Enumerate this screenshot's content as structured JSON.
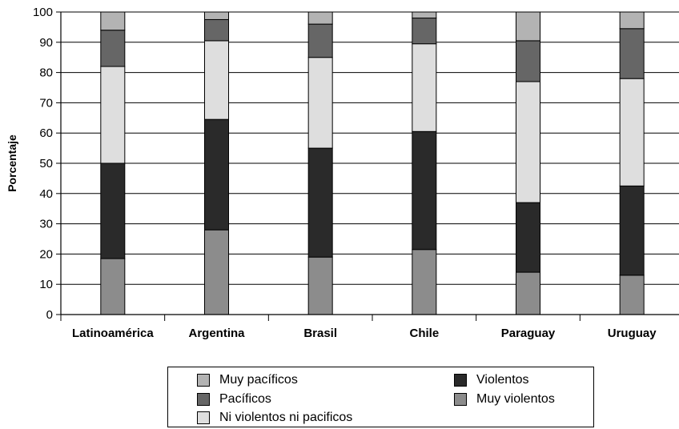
{
  "chart_data": {
    "type": "bar",
    "stacked": true,
    "ylabel": "Porcentaje",
    "xlabel": "",
    "ylim": [
      0,
      100
    ],
    "yticks": [
      0,
      10,
      20,
      30,
      40,
      50,
      60,
      70,
      80,
      90,
      100
    ],
    "grid": "horizontal",
    "categories": [
      "Latinoamérica",
      "Argentina",
      "Brasil",
      "Chile",
      "Paraguay",
      "Uruguay"
    ],
    "series": [
      {
        "name": "Muy violentos",
        "color": "#8c8c8c",
        "values": [
          18.5,
          28,
          19,
          21.5,
          14,
          13
        ]
      },
      {
        "name": "Violentos",
        "color": "#2a2a2a",
        "values": [
          31.5,
          36.5,
          36,
          39,
          23,
          29.5
        ]
      },
      {
        "name": "Ni violentos ni pacificos",
        "color": "#dedede",
        "values": [
          32,
          26,
          30,
          29,
          40,
          35.5
        ]
      },
      {
        "name": "Pacíficos",
        "color": "#666666",
        "values": [
          12,
          7,
          11,
          8.5,
          13.5,
          16.5
        ]
      },
      {
        "name": "Muy pacíficos",
        "color": "#b3b3b3",
        "values": [
          6,
          2.5,
          4,
          2,
          9.5,
          5.5
        ]
      }
    ],
    "legend_position": "bottom",
    "legend_order": [
      "Muy pacíficos",
      "Violentos",
      "Pacíficos",
      "Muy violentos",
      "Ni violentos ni pacificos"
    ]
  }
}
